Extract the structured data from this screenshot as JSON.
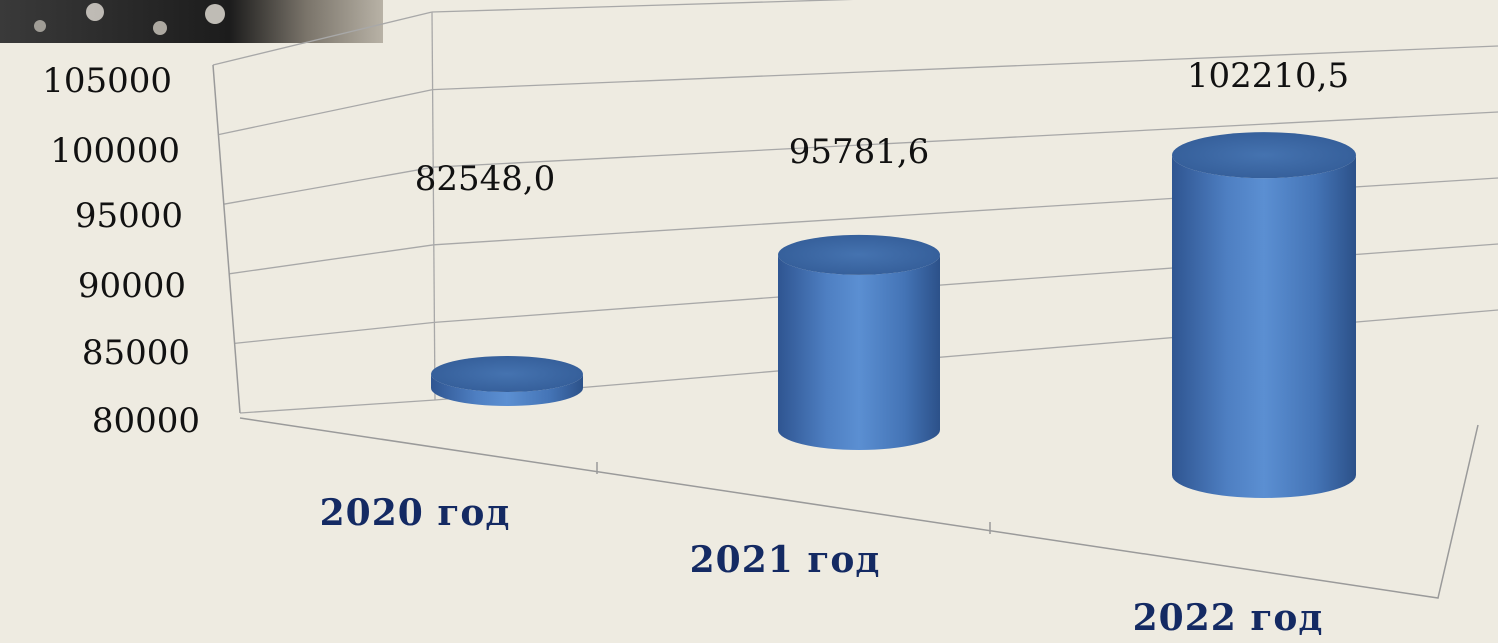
{
  "chart_data": {
    "type": "bar",
    "bar_style": "3d-cylinder",
    "categories": [
      "2020 год",
      "2021 год",
      "2022 год"
    ],
    "values": [
      82548.0,
      95781.6,
      102210.5
    ],
    "value_labels": [
      "82548,0",
      "95781,6",
      "102210,5"
    ],
    "y_ticks": [
      "80000",
      "85000",
      "90000",
      "95000",
      "100000",
      "105000"
    ],
    "ylim": [
      80000,
      105000
    ],
    "grid": true,
    "colors": {
      "bar": "#4f81bd",
      "bar_top": "#3b67a8",
      "category_label": "#142a63",
      "gridline": "#a8a8a8",
      "background": "#eeebe1"
    }
  }
}
